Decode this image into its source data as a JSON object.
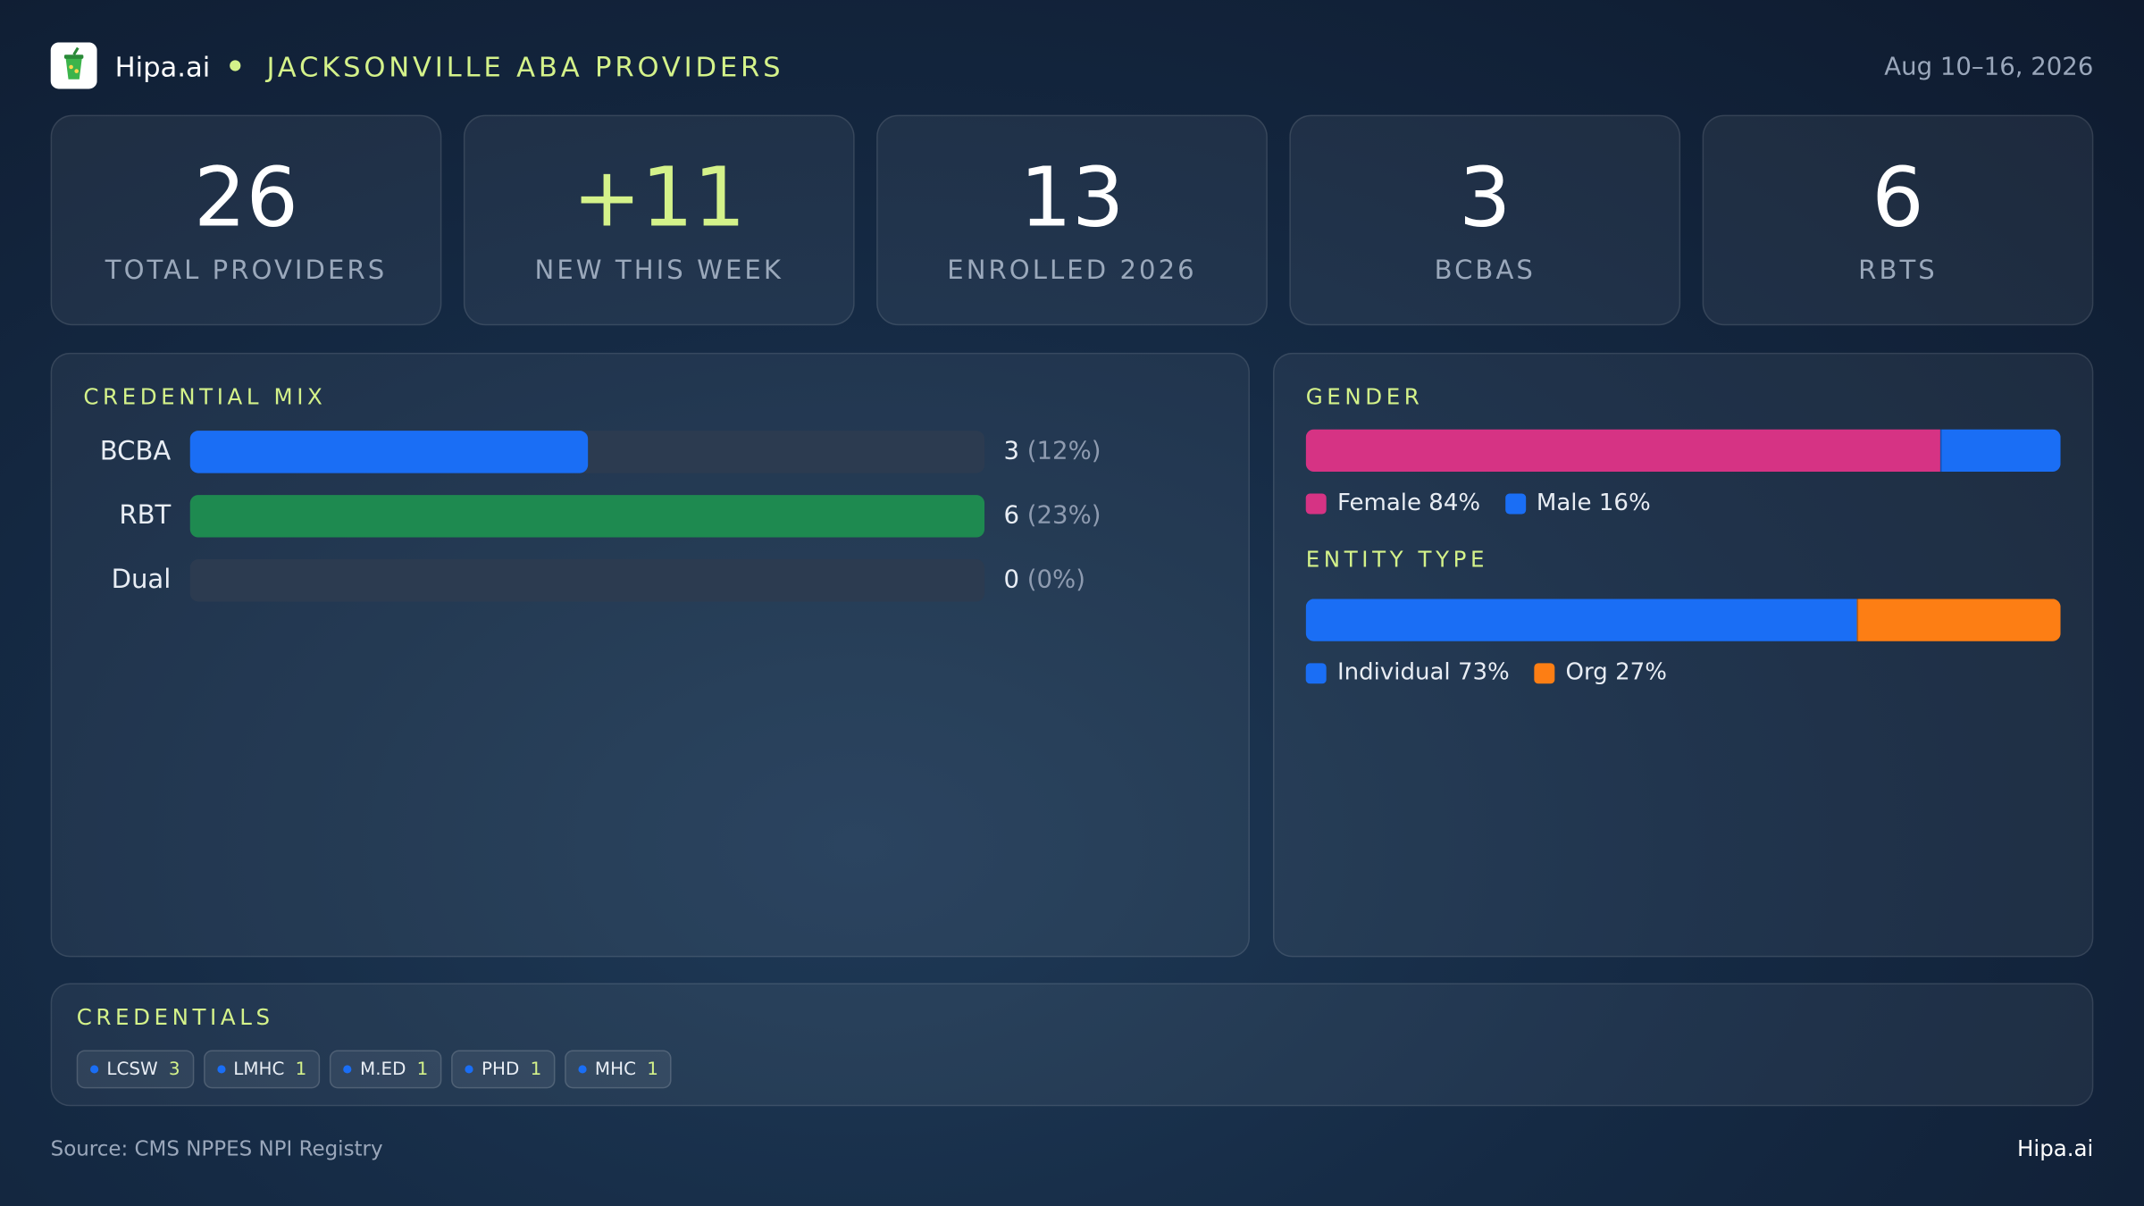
{
  "header": {
    "brand": "Hipa.ai",
    "title": "JACKSONVILLE ABA PROVIDERS",
    "date": "Aug 10–16, 2026"
  },
  "kpis": [
    {
      "value": 26,
      "label": "TOTAL PROVIDERS"
    },
    {
      "value": "+11",
      "label": "NEW THIS WEEK",
      "color": "#d4f28a"
    },
    {
      "value": 13,
      "label": "ENROLLED 2026"
    },
    {
      "value": 3,
      "label": "BCBAS"
    },
    {
      "value": 6,
      "label": "RBTS"
    }
  ],
  "credential_mix": {
    "title": "CREDENTIAL MIX",
    "rows": [
      {
        "label": "BCBA",
        "value": 3,
        "share_label": "(12%)",
        "color": "#1a6ef5"
      },
      {
        "label": "RBT",
        "value": 6,
        "share_label": "(23%)",
        "color": "#1e8a50"
      },
      {
        "label": "Dual",
        "value": 0,
        "share_label": "(0%)",
        "color": "#7a4fd6"
      }
    ]
  },
  "breakdowns": [
    {
      "title": "GENDER",
      "segments": [
        {
          "name": "Female",
          "value": 84,
          "value_label": "84%",
          "color": "#d63384"
        },
        {
          "name": "Male",
          "value": 16,
          "value_label": "16%",
          "color": "#1a6ef5"
        }
      ]
    },
    {
      "title": "ENTITY TYPE",
      "segments": [
        {
          "name": "Individual",
          "value": 73,
          "value_label": "73%",
          "color": "#1a6ef5"
        },
        {
          "name": "Org",
          "value": 27,
          "value_label": "27%",
          "color": "#fd7e14"
        }
      ]
    }
  ],
  "credentials": {
    "title": "CREDENTIALS",
    "items": [
      {
        "name": "LCSW",
        "count": 3
      },
      {
        "name": "LMHC",
        "count": 1
      },
      {
        "name": "M.ED",
        "count": 1
      },
      {
        "name": "PHD",
        "count": 1
      },
      {
        "name": "MHC",
        "count": 1
      }
    ]
  },
  "footer": {
    "source": "Source: CMS NPPES NPI Registry",
    "brand": "Hipa.ai"
  }
}
